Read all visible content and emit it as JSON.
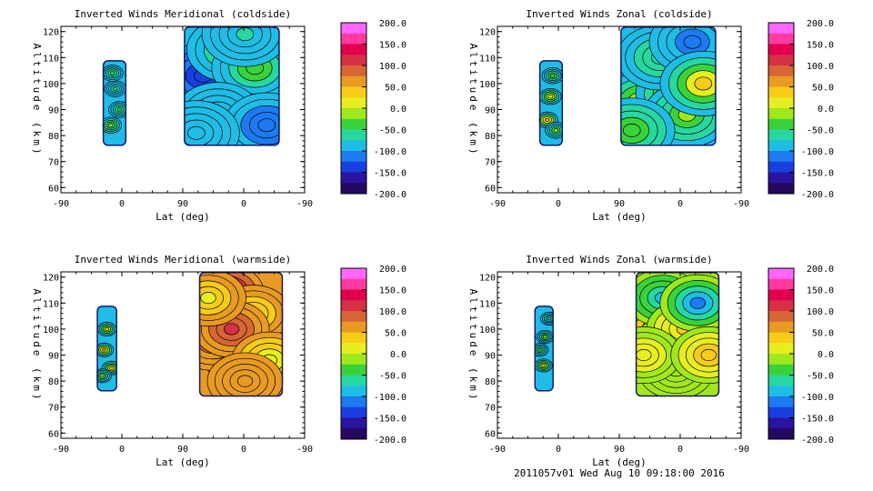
{
  "footer": "2011057v01 Wed Aug 10 09:18:00 2016",
  "colorbar": {
    "levels": [
      200,
      175,
      150,
      125,
      100,
      75,
      50,
      25,
      0,
      -25,
      -50,
      -75,
      -100,
      -125,
      -150,
      -175,
      -200
    ],
    "tick_labels": [
      "200.0",
      "150.0",
      "100.0",
      "50.0",
      "0.0",
      "-50.0",
      "-100.0",
      "-150.0",
      "-200.0"
    ],
    "colors": [
      "#ff66ff",
      "#ff3aa0",
      "#e0004e",
      "#d53045",
      "#d86535",
      "#e89a22",
      "#f7cc18",
      "#e6ee20",
      "#a0e81e",
      "#3ad23a",
      "#27d7a0",
      "#1fbde6",
      "#1d7af0",
      "#1a3fe0",
      "#2a14a0",
      "#250860"
    ]
  },
  "chart_data": [
    {
      "type": "heatmap",
      "title": "Inverted Winds Meridional (coldside)",
      "xlabel": "Lat (deg)",
      "ylabel": "Altitude (km)",
      "x_tick_labels": [
        "-90",
        "0",
        "90",
        "0",
        "-90"
      ],
      "ylim": [
        58,
        122
      ],
      "y_ticks": [
        60,
        70,
        80,
        90,
        100,
        110,
        120
      ],
      "blocks": [
        {
          "x": [
            -13,
            31
          ],
          "y": [
            76,
            109
          ],
          "fill": -95,
          "cells": [
            {
              "lat": 10,
              "alt": 98,
              "value": -60
            },
            {
              "lat": 2,
              "alt": 84,
              "value": -15
            },
            {
              "lat": 18,
              "alt": 90,
              "value": -40
            },
            {
              "lat": 5,
              "alt": 104,
              "value": -45
            }
          ]
        },
        {
          "x": [
            137,
            314
          ],
          "y": [
            76,
            122
          ],
          "fill": -95,
          "cells": [
            {
              "lat": 172,
              "alt": 103,
              "value": -140
            },
            {
              "lat": 222,
              "alt": 113,
              "value": -55
            },
            {
              "lat": 238,
              "alt": 90,
              "value": -15
            },
            {
              "lat": 268,
              "alt": 106,
              "value": -35
            },
            {
              "lat": 200,
              "alt": 88,
              "value": -80
            },
            {
              "lat": 290,
              "alt": 84,
              "value": -115
            },
            {
              "lat": 160,
              "alt": 81,
              "value": -100
            },
            {
              "lat": 250,
              "alt": 119,
              "value": -75
            }
          ]
        }
      ]
    },
    {
      "type": "heatmap",
      "title": "Inverted Winds Zonal (coldside)",
      "xlabel": "Lat (deg)",
      "ylabel": "Altitude (km)",
      "x_tick_labels": [
        "-90",
        "0",
        "90",
        "0",
        "-90"
      ],
      "ylim": [
        58,
        122
      ],
      "y_ticks": [
        60,
        70,
        80,
        90,
        100,
        110,
        120
      ],
      "blocks": [
        {
          "x": [
            -13,
            31
          ],
          "y": [
            76,
            109
          ],
          "fill": -100,
          "cells": [
            {
              "lat": 2,
              "alt": 86,
              "value": 50
            },
            {
              "lat": 8,
              "alt": 95,
              "value": 20
            },
            {
              "lat": 12,
              "alt": 103,
              "value": -30
            },
            {
              "lat": 18,
              "alt": 82,
              "value": -10
            }
          ]
        },
        {
          "x": [
            137,
            314
          ],
          "y": [
            76,
            122
          ],
          "fill": -90,
          "cells": [
            {
              "lat": 200,
              "alt": 98,
              "value": 25
            },
            {
              "lat": 180,
              "alt": 92,
              "value": 5
            },
            {
              "lat": 245,
              "alt": 96,
              "value": 10
            },
            {
              "lat": 260,
              "alt": 88,
              "value": -20
            },
            {
              "lat": 210,
              "alt": 110,
              "value": -55
            },
            {
              "lat": 270,
              "alt": 116,
              "value": -110
            },
            {
              "lat": 158,
              "alt": 82,
              "value": -30
            },
            {
              "lat": 290,
              "alt": 100,
              "value": 30
            }
          ]
        }
      ]
    },
    {
      "type": "heatmap",
      "title": "Inverted Winds Meridional (warmside)",
      "xlabel": "Lat (deg)",
      "ylabel": "Altitude (km)",
      "x_tick_labels": [
        "-90",
        "0",
        "90",
        "0",
        "-90"
      ],
      "ylim": [
        58,
        122
      ],
      "y_ticks": [
        60,
        70,
        80,
        90,
        100,
        110,
        120
      ],
      "blocks": [
        {
          "x": [
            -24,
            14
          ],
          "y": [
            76,
            109
          ],
          "fill": -95,
          "cells": [
            {
              "lat": -10,
              "alt": 92,
              "value": 60
            },
            {
              "lat": -5,
              "alt": 100,
              "value": 30
            },
            {
              "lat": 3,
              "alt": 85,
              "value": 40
            },
            {
              "lat": -14,
              "alt": 82,
              "value": -20
            }
          ]
        },
        {
          "x": [
            165,
            320
          ],
          "y": [
            74,
            122
          ],
          "fill": 60,
          "cells": [
            {
              "lat": 215,
              "alt": 114,
              "value": 150
            },
            {
              "lat": 240,
              "alt": 90,
              "value": -60
            },
            {
              "lat": 190,
              "alt": 95,
              "value": 85
            },
            {
              "lat": 265,
              "alt": 106,
              "value": 35
            },
            {
              "lat": 225,
              "alt": 100,
              "value": 100
            },
            {
              "lat": 182,
              "alt": 112,
              "value": 20
            },
            {
              "lat": 295,
              "alt": 88,
              "value": 5
            },
            {
              "lat": 250,
              "alt": 80,
              "value": 50
            }
          ]
        }
      ]
    },
    {
      "type": "heatmap",
      "title": "Inverted Winds Zonal (warmside)",
      "xlabel": "Lat (deg)",
      "ylabel": "Altitude (km)",
      "x_tick_labels": [
        "-90",
        "0",
        "90",
        "0",
        "-90"
      ],
      "ylim": [
        58,
        122
      ],
      "y_ticks": [
        60,
        70,
        80,
        90,
        100,
        110,
        120
      ],
      "blocks": [
        {
          "x": [
            -22,
            14
          ],
          "y": [
            76,
            109
          ],
          "fill": -100,
          "cells": [
            {
              "lat": -5,
              "alt": 86,
              "value": 30
            },
            {
              "lat": -2,
              "alt": 97,
              "value": -20
            },
            {
              "lat": 6,
              "alt": 104,
              "value": -60
            },
            {
              "lat": -12,
              "alt": 92,
              "value": -40
            }
          ]
        },
        {
          "x": [
            165,
            320
          ],
          "y": [
            74,
            122
          ],
          "fill": -10,
          "cells": [
            {
              "lat": 205,
              "alt": 100,
              "value": 95
            },
            {
              "lat": 230,
              "alt": 94,
              "value": 65
            },
            {
              "lat": 215,
              "alt": 112,
              "value": -85
            },
            {
              "lat": 255,
              "alt": 100,
              "value": 30
            },
            {
              "lat": 240,
              "alt": 84,
              "value": -10
            },
            {
              "lat": 180,
              "alt": 90,
              "value": 20
            },
            {
              "lat": 280,
              "alt": 110,
              "value": -120
            },
            {
              "lat": 300,
              "alt": 90,
              "value": 40
            }
          ]
        }
      ]
    }
  ]
}
